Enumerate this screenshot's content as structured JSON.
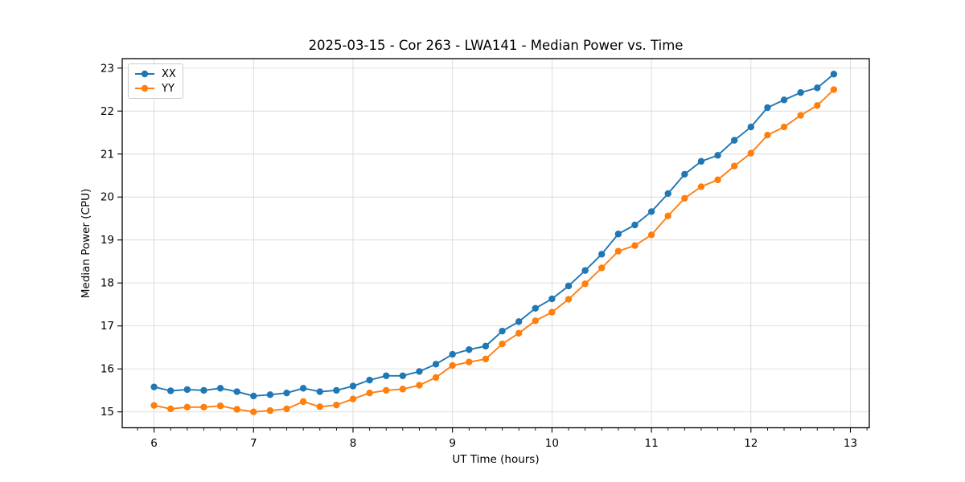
{
  "figure": {
    "title": "2025-03-15 - Cor 263 - LWA141 - Median Power vs. Time"
  },
  "chart_data": {
    "type": "line",
    "title": "2025-03-15 - Cor 263 - LWA141 - Median Power vs. Time",
    "xlabel": "UT Time (hours)",
    "ylabel": "Median Power (CPU)",
    "xlim": [
      5.68,
      13.19
    ],
    "ylim": [
      14.63,
      23.22
    ],
    "xticks": [
      6,
      7,
      8,
      9,
      10,
      11,
      12,
      13
    ],
    "yticks": [
      15,
      16,
      17,
      18,
      19,
      20,
      21,
      22,
      23
    ],
    "minor_xtick_step": 0.166667,
    "grid": true,
    "grid_color": "#d9d9d9",
    "legend_position": "upper left",
    "marker": "circle",
    "x": [
      6.0,
      6.1667,
      6.3333,
      6.5,
      6.6667,
      6.8333,
      7.0,
      7.1667,
      7.3333,
      7.5,
      7.6667,
      7.8333,
      8.0,
      8.1667,
      8.3333,
      8.5,
      8.6667,
      8.8333,
      9.0,
      9.1667,
      9.3333,
      9.5,
      9.6667,
      9.8333,
      10.0,
      10.1667,
      10.3333,
      10.5,
      10.6667,
      10.8333,
      11.0,
      11.1667,
      11.3333,
      11.5,
      11.6667,
      11.8333,
      12.0,
      12.1667,
      12.3333,
      12.5,
      12.6667,
      12.8333
    ],
    "series": [
      {
        "name": "XX",
        "color": "#1f77b4",
        "values": [
          15.58,
          15.49,
          15.52,
          15.5,
          15.55,
          15.47,
          15.37,
          15.4,
          15.44,
          15.55,
          15.47,
          15.5,
          15.6,
          15.74,
          15.84,
          15.84,
          15.94,
          16.11,
          16.34,
          16.45,
          16.53,
          16.88,
          17.1,
          17.41,
          17.63,
          17.93,
          18.29,
          18.67,
          19.14,
          19.35,
          19.66,
          20.08,
          20.53,
          20.83,
          20.97,
          21.32,
          21.63,
          22.08,
          22.26,
          22.43,
          22.54,
          22.86
        ]
      },
      {
        "name": "YY",
        "color": "#ff7f0e",
        "values": [
          15.15,
          15.07,
          15.11,
          15.11,
          15.14,
          15.06,
          15.0,
          15.03,
          15.07,
          15.24,
          15.12,
          15.16,
          15.3,
          15.44,
          15.5,
          15.53,
          15.62,
          15.8,
          16.08,
          16.16,
          16.23,
          16.58,
          16.83,
          17.12,
          17.32,
          17.62,
          17.98,
          18.35,
          18.74,
          18.87,
          19.12,
          19.56,
          19.97,
          20.24,
          20.4,
          20.72,
          21.02,
          21.44,
          21.63,
          21.9,
          22.13,
          22.5
        ]
      }
    ]
  }
}
